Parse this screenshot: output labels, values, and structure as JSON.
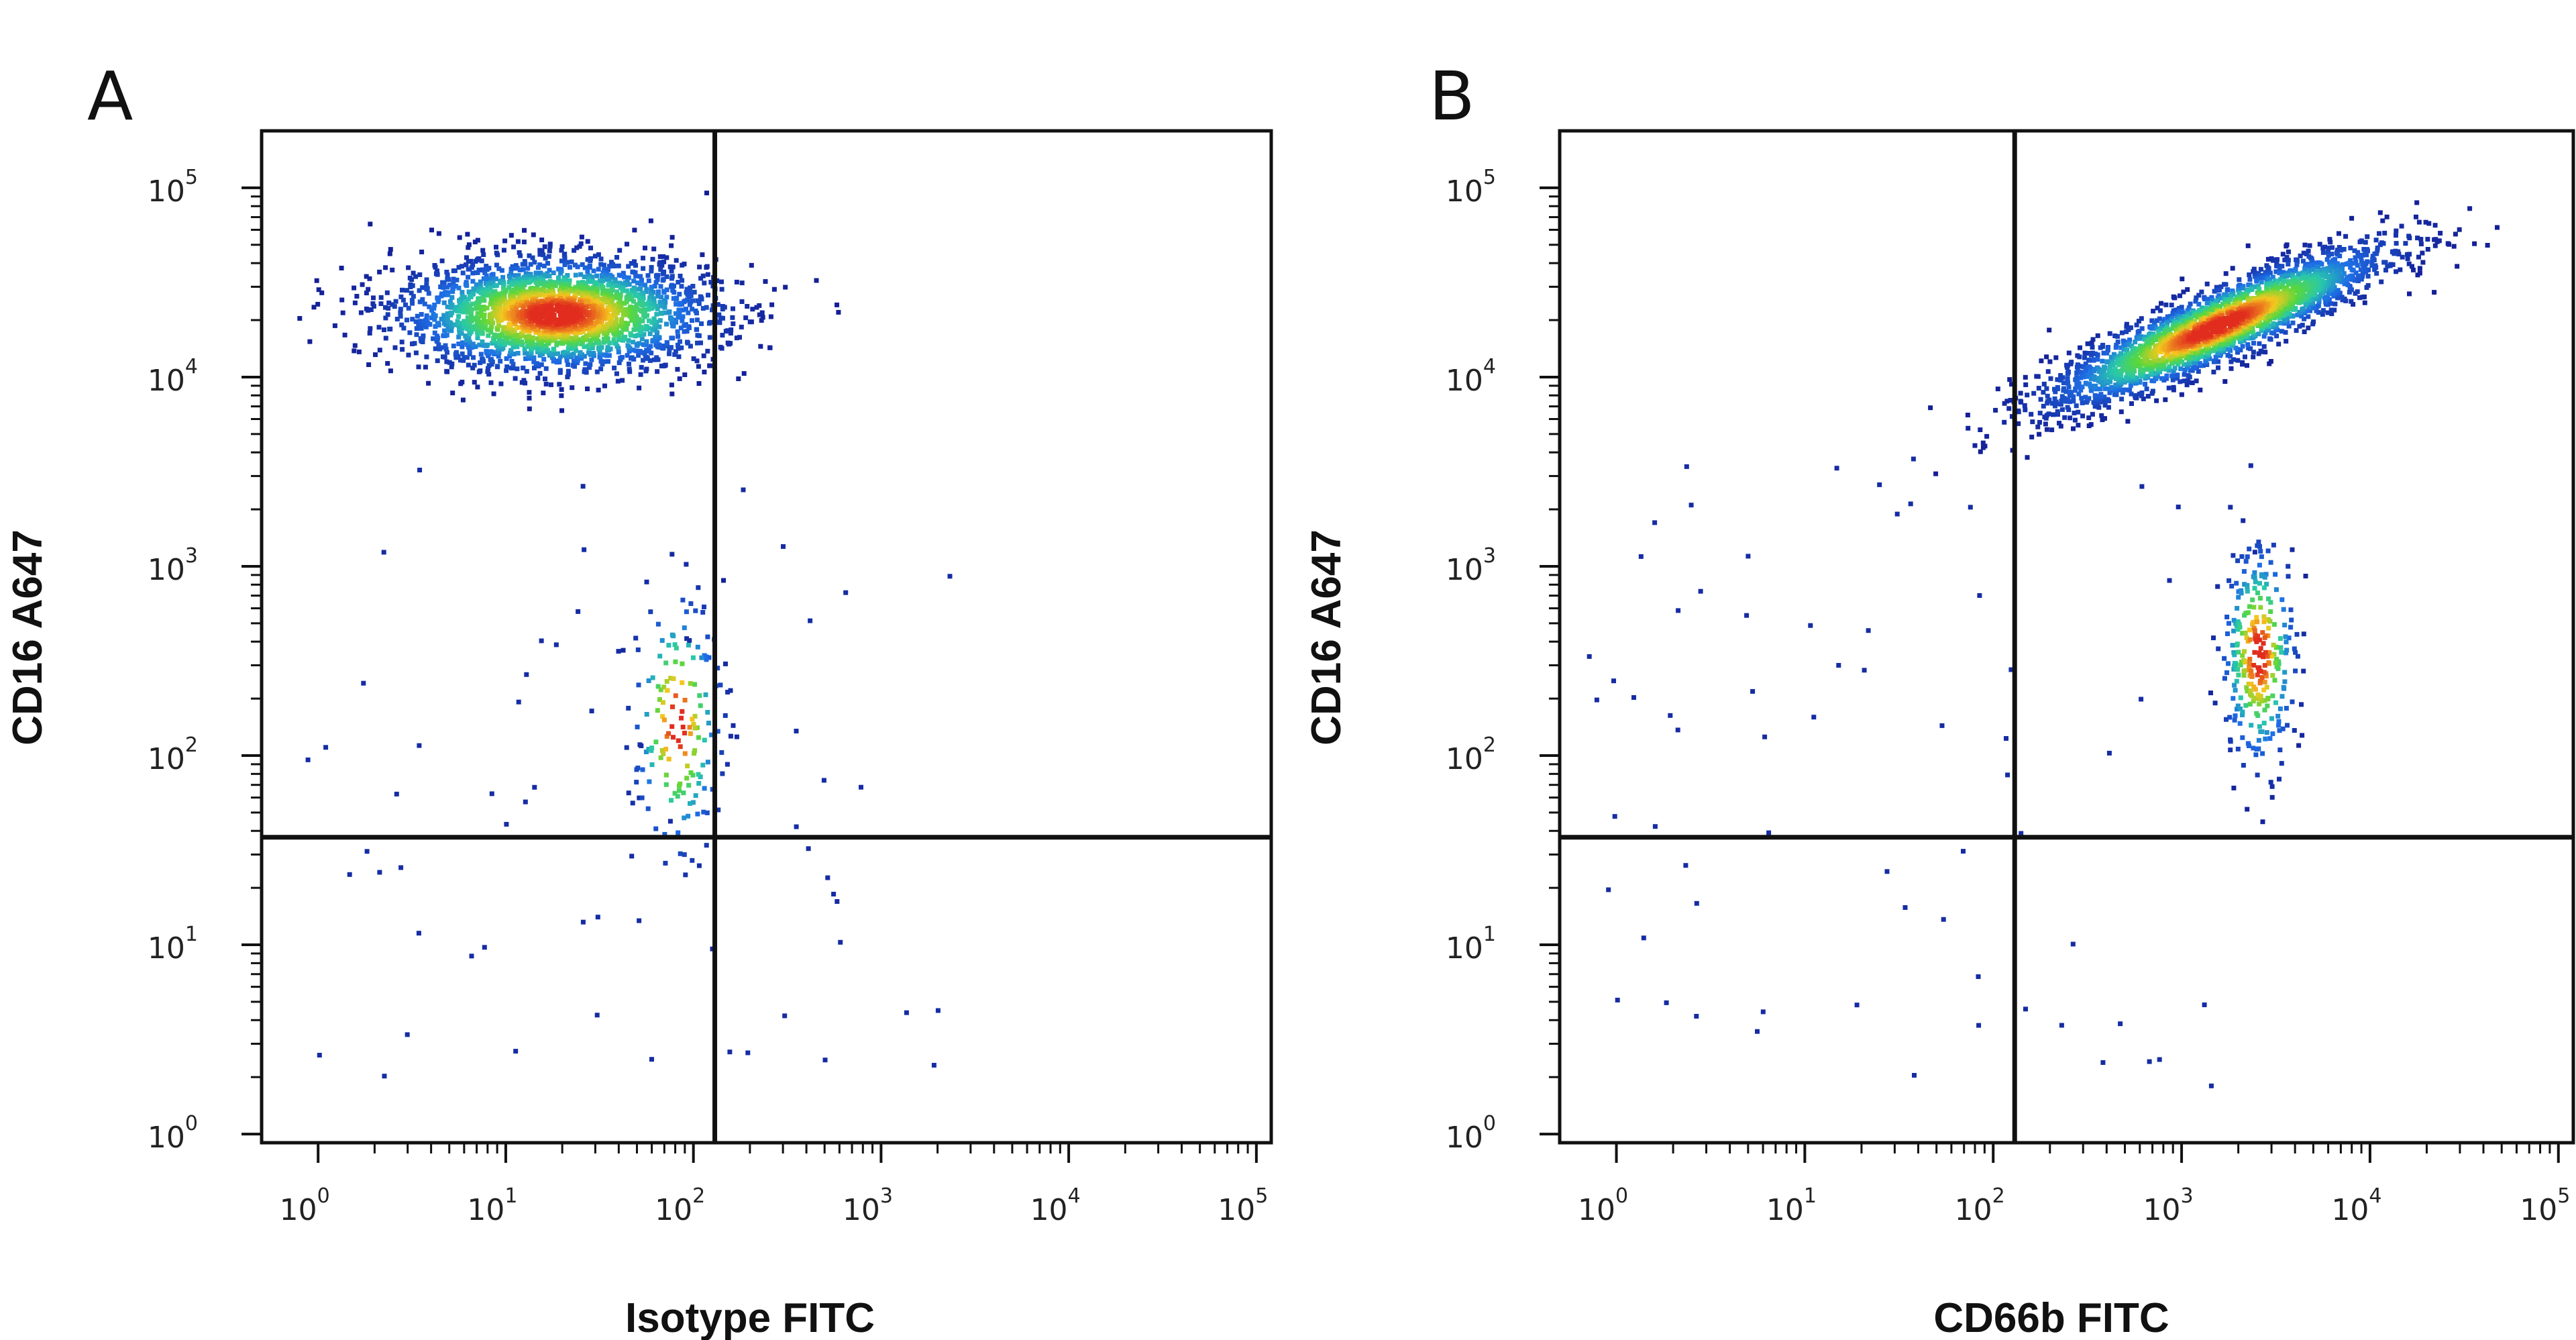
{
  "chart_data": [
    {
      "type": "scatter",
      "panel_label": "A",
      "xlabel": "Isotype FITC",
      "ylabel": "CD16 A647",
      "x_scale": "log",
      "y_scale": "log",
      "xlim": [
        0.5,
        120000
      ],
      "ylim": [
        0.9,
        200000
      ],
      "x_ticks": [
        1,
        10,
        100,
        1000,
        10000,
        100000
      ],
      "y_ticks": [
        1,
        10,
        100,
        1000,
        10000,
        100000
      ],
      "tick_base": "10",
      "tick_exponents": [
        "0",
        "1",
        "2",
        "3",
        "4",
        "5"
      ],
      "quadrant_gate": {
        "x": 130,
        "y": 37
      },
      "grid": false,
      "color_scale": "density (blue → green → yellow → red)",
      "populations": [
        {
          "center_x": 18,
          "center_y": 22000,
          "spread_x_log": 0.42,
          "spread_y_log": 0.15,
          "tilt": 0.0,
          "count": 2600
        },
        {
          "center_x": 80,
          "center_y": 150,
          "spread_x_log": 0.12,
          "spread_y_log": 0.35,
          "tilt": 0.0,
          "count": 160
        }
      ]
    },
    {
      "type": "scatter",
      "panel_label": "B",
      "xlabel": "CD66b FITC",
      "ylabel": "CD16 A647",
      "x_scale": "log",
      "y_scale": "log",
      "xlim": [
        0.5,
        120000
      ],
      "ylim": [
        0.9,
        200000
      ],
      "x_ticks": [
        1,
        10,
        100,
        1000,
        10000,
        100000
      ],
      "y_ticks": [
        1,
        10,
        100,
        1000,
        10000,
        100000
      ],
      "tick_base": "10",
      "tick_exponents": [
        "0",
        "1",
        "2",
        "3",
        "4",
        "5"
      ],
      "quadrant_gate": {
        "x": 130,
        "y": 37
      },
      "grid": false,
      "color_scale": "density (blue → green → yellow → red)",
      "populations": [
        {
          "center_x": 1500,
          "center_y": 19000,
          "spread_x_log": 0.45,
          "spread_y_log": 0.1,
          "tilt": 0.42,
          "count": 2600
        },
        {
          "center_x": 2500,
          "center_y": 350,
          "spread_x_log": 0.1,
          "spread_y_log": 0.3,
          "tilt": 0.0,
          "count": 300
        }
      ]
    }
  ]
}
